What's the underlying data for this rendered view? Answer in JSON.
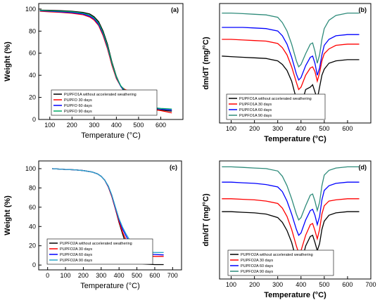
{
  "chart_data": [
    {
      "panel": "(a)",
      "type": "line",
      "xlabel": "Temperature (°C)",
      "ylabel": "Weight (%)",
      "xlim": [
        50,
        700
      ],
      "ylim": [
        0,
        105
      ],
      "xticks": [
        100,
        200,
        300,
        400,
        500,
        600
      ],
      "yticks": [
        0,
        20,
        40,
        60,
        80,
        100
      ],
      "legend_position": "bottom-left",
      "grid": false,
      "series": [
        {
          "name": "PUPFO1A without accelerated weathering",
          "color": "#000000",
          "x": [
            55,
            100,
            150,
            200,
            250,
            280,
            300,
            320,
            340,
            360,
            380,
            400,
            420,
            440,
            460,
            480,
            500,
            520,
            550,
            600,
            650
          ],
          "y": [
            99,
            98.8,
            98.5,
            98,
            97,
            95.5,
            93,
            88.5,
            80,
            68,
            52,
            39,
            30,
            24.5,
            21,
            16,
            12.5,
            10.5,
            9.5,
            8.5,
            7.5
          ]
        },
        {
          "name": "PUPFO 30 days",
          "color": "#ff0000",
          "x": [
            55,
            100,
            150,
            200,
            250,
            280,
            300,
            320,
            340,
            360,
            380,
            400,
            420,
            440,
            460,
            480,
            500,
            520,
            550,
            600,
            650
          ],
          "y": [
            98,
            97.5,
            97,
            96.2,
            94.8,
            92.8,
            90,
            85,
            76,
            64,
            49,
            37,
            30,
            27,
            25.5,
            20,
            14,
            11,
            9.5,
            8,
            6
          ]
        },
        {
          "name": "PUPFO 60 days",
          "color": "#0000ff",
          "x": [
            55,
            100,
            150,
            200,
            250,
            280,
            300,
            320,
            340,
            360,
            380,
            400,
            420,
            440,
            460,
            480,
            500,
            520,
            550,
            600,
            650
          ],
          "y": [
            98.5,
            98,
            97.5,
            96.8,
            95.5,
            93.5,
            91,
            86,
            77.5,
            65.5,
            50.5,
            38,
            30,
            25.5,
            22.5,
            17.5,
            13.5,
            11.5,
            10.5,
            9.5,
            8.5
          ]
        },
        {
          "name": "PUPFO 90 days",
          "color": "#00aa66",
          "x": [
            55,
            100,
            150,
            200,
            250,
            280,
            300,
            320,
            340,
            360,
            380,
            400,
            420,
            440,
            460,
            480,
            500,
            520,
            550,
            600,
            650
          ],
          "y": [
            98.8,
            98.4,
            98,
            97.5,
            96.3,
            94.5,
            92,
            87.2,
            78.5,
            66.5,
            51,
            38.5,
            30.5,
            26,
            23,
            18,
            14,
            12,
            11,
            10,
            9.5
          ]
        }
      ]
    },
    {
      "panel": "(b)",
      "type": "line",
      "xlabel": "Temperature (°C)",
      "ylabel": "dm/dT (mg/°C)",
      "xlim": [
        50,
        700
      ],
      "ylim": [
        0,
        1
      ],
      "xticks": [
        100,
        200,
        300,
        400,
        500,
        600
      ],
      "yticks": [],
      "legend_position": "bottom-left",
      "grid": false,
      "series": [
        {
          "name": "PUPFO1A without accelerated weathering",
          "color": "#000000",
          "x": [
            60,
            100,
            150,
            200,
            250,
            300,
            320,
            340,
            360,
            380,
            390,
            400,
            420,
            440,
            450,
            460,
            470,
            480,
            490,
            500,
            520,
            550,
            600,
            650
          ],
          "y": [
            0.56,
            0.555,
            0.55,
            0.545,
            0.54,
            0.52,
            0.49,
            0.44,
            0.35,
            0.2,
            0.12,
            0.14,
            0.28,
            0.3,
            0.32,
            0.26,
            0.2,
            0.3,
            0.4,
            0.45,
            0.5,
            0.52,
            0.53,
            0.53
          ]
        },
        {
          "name": "PUPFO1A 30 days",
          "color": "#ff0000",
          "x": [
            60,
            100,
            150,
            200,
            250,
            300,
            320,
            340,
            360,
            380,
            390,
            400,
            420,
            440,
            450,
            460,
            470,
            480,
            490,
            500,
            520,
            550,
            600,
            650
          ],
          "y": [
            0.7,
            0.7,
            0.695,
            0.69,
            0.685,
            0.665,
            0.63,
            0.57,
            0.47,
            0.34,
            0.28,
            0.3,
            0.4,
            0.46,
            0.47,
            0.43,
            0.35,
            0.42,
            0.52,
            0.58,
            0.62,
            0.65,
            0.66,
            0.66
          ]
        },
        {
          "name": "PUPFO1A 60 days",
          "color": "#0000ff",
          "x": [
            60,
            100,
            150,
            200,
            250,
            300,
            320,
            340,
            360,
            380,
            390,
            400,
            420,
            440,
            450,
            460,
            470,
            480,
            490,
            500,
            520,
            550,
            600,
            650
          ],
          "y": [
            0.8,
            0.8,
            0.8,
            0.795,
            0.79,
            0.77,
            0.73,
            0.66,
            0.55,
            0.41,
            0.36,
            0.38,
            0.48,
            0.55,
            0.56,
            0.5,
            0.4,
            0.46,
            0.57,
            0.65,
            0.7,
            0.73,
            0.74,
            0.74
          ]
        },
        {
          "name": "PUPFO1A 90 days",
          "color": "#2e8b7a",
          "x": [
            60,
            100,
            150,
            200,
            250,
            300,
            320,
            340,
            360,
            380,
            390,
            400,
            420,
            440,
            450,
            460,
            470,
            480,
            490,
            500,
            520,
            550,
            600,
            650
          ],
          "y": [
            0.92,
            0.92,
            0.915,
            0.91,
            0.905,
            0.885,
            0.84,
            0.77,
            0.66,
            0.52,
            0.47,
            0.49,
            0.58,
            0.66,
            0.67,
            0.6,
            0.5,
            0.57,
            0.7,
            0.79,
            0.86,
            0.9,
            0.92,
            0.92
          ]
        }
      ]
    },
    {
      "panel": "(c)",
      "type": "line",
      "xlabel": "Temperature (°C)",
      "ylabel": "Weight (%)",
      "xlim": [
        -50,
        750
      ],
      "ylim": [
        -5,
        108
      ],
      "xticks": [
        0,
        100,
        200,
        300,
        400,
        500,
        600,
        700
      ],
      "yticks": [
        0,
        20,
        40,
        60,
        80,
        100
      ],
      "legend_position": "bottom-left",
      "grid": false,
      "series": [
        {
          "name": "PUPFO2A without accelerated weathering",
          "color": "#000000",
          "x": [
            25,
            100,
            150,
            200,
            250,
            280,
            300,
            320,
            340,
            360,
            380,
            400,
            420,
            440,
            460,
            470,
            480,
            500,
            520,
            550,
            600,
            650
          ],
          "y": [
            100,
            99.2,
            98.8,
            98,
            96.5,
            94.5,
            92,
            88,
            81,
            71,
            58,
            44,
            32,
            21,
            10,
            6,
            3.5,
            2,
            1.5,
            1,
            0.5,
            0.5
          ]
        },
        {
          "name": "PUPFO2A 30 days",
          "color": "#ff0000",
          "x": [
            25,
            100,
            150,
            200,
            250,
            280,
            300,
            320,
            340,
            360,
            380,
            400,
            420,
            440,
            460,
            470,
            480,
            500,
            520,
            550,
            600,
            650
          ],
          "y": [
            100,
            99.2,
            98.8,
            98,
            96.5,
            94.5,
            92,
            88,
            81,
            71,
            58,
            45,
            34,
            26,
            18,
            13.5,
            11.5,
            10.5,
            10,
            9.5,
            9,
            9
          ]
        },
        {
          "name": "PUPFO2A 60 days",
          "color": "#0000ff",
          "x": [
            25,
            100,
            150,
            200,
            250,
            280,
            300,
            320,
            340,
            360,
            380,
            400,
            420,
            440,
            460,
            470,
            480,
            500,
            520,
            550,
            600,
            650
          ],
          "y": [
            100,
            99.2,
            98.8,
            98,
            96.5,
            94.5,
            92,
            88,
            81.5,
            72,
            59,
            47,
            37,
            30,
            23,
            18,
            15,
            13,
            12,
            11.5,
            11,
            10.5
          ]
        },
        {
          "name": "PUPFO2A 90 days",
          "color": "#2aa7c9",
          "x": [
            25,
            100,
            150,
            200,
            250,
            280,
            300,
            320,
            340,
            360,
            380,
            400,
            420,
            440,
            460,
            470,
            480,
            500,
            520,
            550,
            600,
            650
          ],
          "y": [
            100,
            99.2,
            98.8,
            98,
            96.5,
            94.5,
            92,
            88,
            82,
            72.5,
            60,
            48,
            39,
            32,
            26,
            21,
            17,
            15,
            14,
            13.5,
            13,
            13
          ]
        }
      ]
    },
    {
      "panel": "(d)",
      "type": "line",
      "xlabel": "Temperature (°C)",
      "ylabel": "dm/dT (mg/°C)",
      "xlim": [
        50,
        700
      ],
      "ylim": [
        0,
        1
      ],
      "xticks": [
        100,
        200,
        300,
        400,
        500,
        600,
        700
      ],
      "yticks": [],
      "legend_position": "bottom-left",
      "grid": false,
      "series": [
        {
          "name": "PUPFO2A without accelerated weathering",
          "color": "#000000",
          "x": [
            60,
            100,
            150,
            200,
            250,
            300,
            320,
            340,
            360,
            380,
            390,
            400,
            420,
            440,
            450,
            460,
            470,
            480,
            490,
            500,
            520,
            550,
            600,
            650
          ],
          "y": [
            0.57,
            0.57,
            0.565,
            0.56,
            0.55,
            0.52,
            0.48,
            0.41,
            0.31,
            0.16,
            0.09,
            0.12,
            0.28,
            0.36,
            0.37,
            0.31,
            0.24,
            0.3,
            0.42,
            0.49,
            0.54,
            0.56,
            0.57,
            0.57
          ]
        },
        {
          "name": "PUPFO2A 30 days",
          "color": "#ff0000",
          "x": [
            60,
            100,
            150,
            200,
            250,
            300,
            320,
            340,
            360,
            380,
            390,
            400,
            420,
            440,
            450,
            460,
            470,
            480,
            490,
            500,
            520,
            550,
            600,
            650
          ],
          "y": [
            0.68,
            0.68,
            0.675,
            0.67,
            0.66,
            0.64,
            0.6,
            0.53,
            0.42,
            0.28,
            0.22,
            0.24,
            0.37,
            0.46,
            0.47,
            0.41,
            0.34,
            0.42,
            0.55,
            0.62,
            0.66,
            0.67,
            0.68,
            0.68
          ]
        },
        {
          "name": "PUPFO2A 60 days",
          "color": "#0000ff",
          "x": [
            60,
            100,
            150,
            200,
            250,
            300,
            320,
            340,
            360,
            380,
            390,
            400,
            420,
            440,
            450,
            460,
            470,
            480,
            490,
            500,
            520,
            550,
            600,
            650
          ],
          "y": [
            0.82,
            0.82,
            0.815,
            0.81,
            0.8,
            0.78,
            0.74,
            0.66,
            0.55,
            0.42,
            0.37,
            0.39,
            0.5,
            0.58,
            0.59,
            0.54,
            0.46,
            0.53,
            0.67,
            0.75,
            0.79,
            0.81,
            0.82,
            0.82
          ]
        },
        {
          "name": "PUPFO2A 90 days",
          "color": "#2e8b7a",
          "x": [
            60,
            100,
            150,
            200,
            250,
            300,
            320,
            340,
            360,
            380,
            390,
            400,
            420,
            440,
            450,
            460,
            470,
            480,
            490,
            500,
            520,
            550,
            600,
            650
          ],
          "y": [
            0.95,
            0.95,
            0.945,
            0.94,
            0.935,
            0.915,
            0.87,
            0.79,
            0.68,
            0.55,
            0.5,
            0.52,
            0.62,
            0.71,
            0.72,
            0.66,
            0.58,
            0.65,
            0.79,
            0.88,
            0.92,
            0.94,
            0.95,
            0.95
          ]
        }
      ]
    }
  ]
}
